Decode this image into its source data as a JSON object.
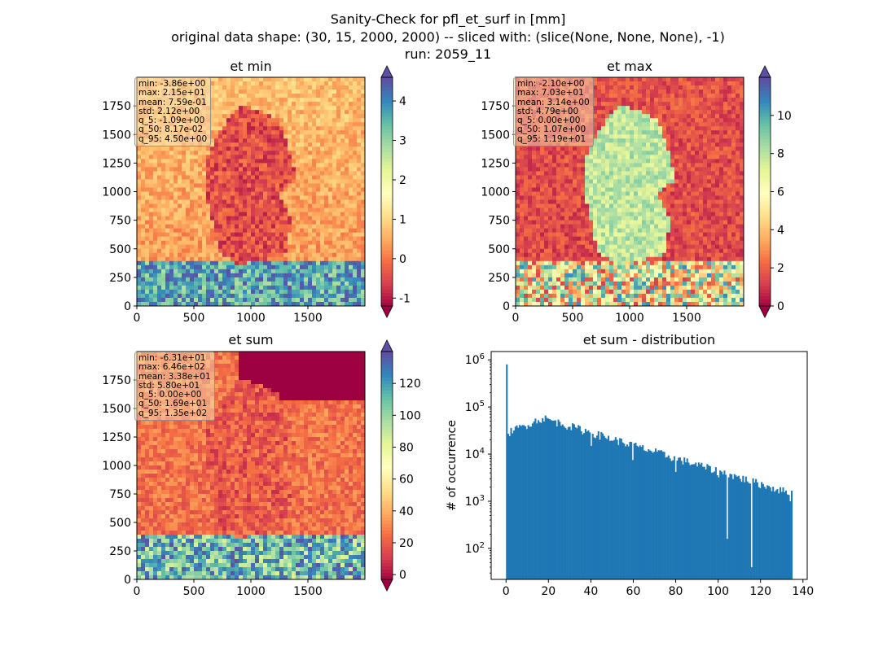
{
  "suptitle": {
    "line1": "Sanity-Check for pfl_et_surf in [mm]",
    "line2": "original data shape: (30, 15, 2000, 2000) -- sliced with: (slice(None, None, None), -1)",
    "line3": "run: 2059_11"
  },
  "colors": {
    "spectral": [
      "#9e0142",
      "#d53e4f",
      "#f46d43",
      "#fdae61",
      "#fee08b",
      "#ffffbf",
      "#e6f598",
      "#abdda4",
      "#66c2a5",
      "#3288bd",
      "#5e4fa2"
    ],
    "hist_bar": "#1f77b4",
    "statbox_bg": "#f5deb3"
  },
  "panels": {
    "min": {
      "title": "et min",
      "stats": [
        "min: -3.86e+00",
        "max: 2.15e+01",
        "mean: 7.59e-01",
        "std: 2.12e+00",
        "q_5: -1.09e+00",
        "q_50: 8.17e-02",
        "q_95: 4.50e+00"
      ],
      "vmin": -1.2,
      "vmax": 4.6,
      "cbar_ticks": [
        -1,
        0,
        1,
        2,
        3,
        4
      ],
      "germany_value": -0.4,
      "background_value": 0.3
    },
    "max": {
      "title": "et max",
      "stats": [
        "min: -2.10e+00",
        "max: 7.03e+01",
        "mean: 3.14e+00",
        "std: 4.79e+00",
        "q_5: 0.00e+00",
        "q_50: 1.07e+00",
        "q_95: 1.19e+01"
      ],
      "vmin": 0,
      "vmax": 12,
      "cbar_ticks": [
        0,
        2,
        4,
        6,
        8,
        10
      ],
      "germany_value": 8,
      "background_value": 1.5
    },
    "sum": {
      "title": "et sum",
      "stats": [
        "min: -6.31e+01",
        "max: 6.46e+02",
        "mean: 3.38e+01",
        "std: 5.80e+01",
        "q_5: 0.00e+00",
        "q_50: 1.69e+01",
        "q_95: 1.35e+02"
      ],
      "vmin": -3,
      "vmax": 140,
      "cbar_ticks": [
        0,
        20,
        40,
        60,
        80,
        100,
        120
      ],
      "germany_value": 20,
      "background_value": 25
    }
  },
  "map_axes": {
    "x_ticks": [
      0,
      500,
      1000,
      1500
    ],
    "y_ticks": [
      0,
      250,
      500,
      750,
      1000,
      1250,
      1500,
      1750
    ],
    "xlim": [
      0,
      2000
    ],
    "ylim": [
      0,
      2000
    ]
  },
  "chart_data": {
    "type": "histogram",
    "title": "et sum - distribution",
    "xlabel": "",
    "ylabel": "# of occurrence",
    "yscale": "log",
    "xlim": [
      -7,
      142
    ],
    "ylim": [
      22,
      1500000
    ],
    "x_ticks": [
      0,
      20,
      40,
      60,
      80,
      100,
      120,
      140
    ],
    "y_ticks": [
      {
        "exp": 2,
        "value": 100
      },
      {
        "exp": 3,
        "value": 1000
      },
      {
        "exp": 4,
        "value": 10000
      },
      {
        "exp": 5,
        "value": 100000
      },
      {
        "exp": 6,
        "value": 1000000
      }
    ],
    "bins": {
      "start": 0,
      "end": 135,
      "count": 200
    },
    "notable_bars": [
      {
        "x": 0,
        "count": 800000
      },
      {
        "x": 1,
        "count": 27000
      },
      {
        "x": 17,
        "count": 58000
      },
      {
        "x": 40,
        "count": 15000
      },
      {
        "x": 60,
        "count": 7500
      },
      {
        "x": 80,
        "count": 4200
      },
      {
        "x": 100,
        "count": 3200
      },
      {
        "x": 104.6,
        "count": 160
      },
      {
        "x": 115.7,
        "count": 40
      },
      {
        "x": 134,
        "count": 1000
      }
    ]
  }
}
